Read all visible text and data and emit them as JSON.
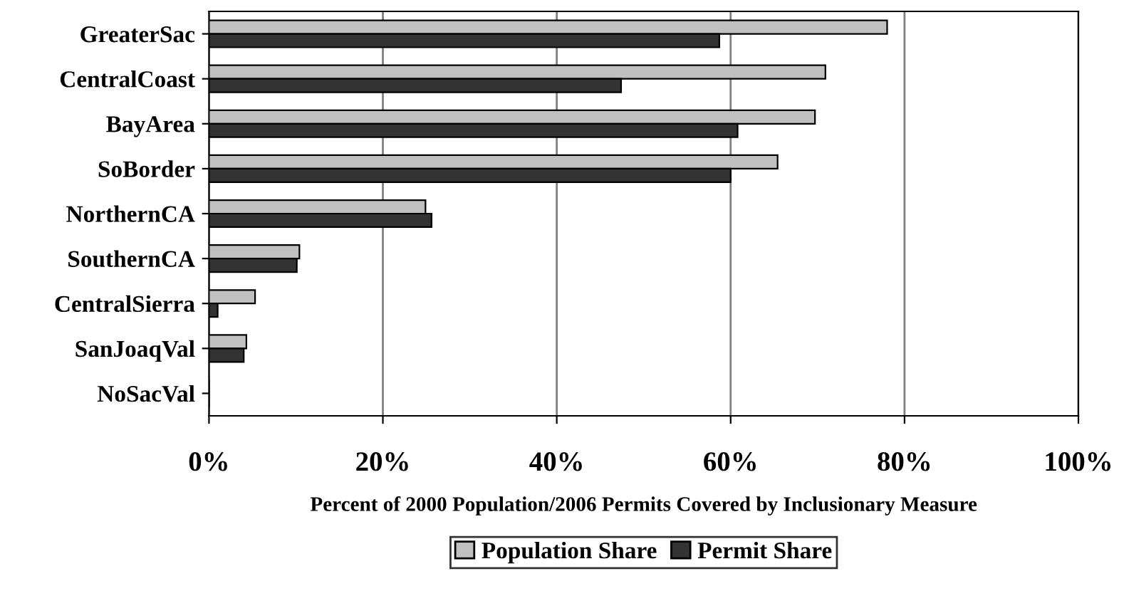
{
  "chart_data": {
    "type": "bar",
    "orientation": "horizontal",
    "xlabel": "Percent of 2000 Population/2006 Permits Covered by Inclusionary Measure",
    "categories": [
      "GreaterSac",
      "CentralCoast",
      "BayArea",
      "SoBorder",
      "NorthernCA",
      "SouthernCA",
      "CentralSierra",
      "SanJoaqVal",
      "NoSacVal"
    ],
    "series": [
      {
        "name": "Population Share",
        "color": "#c0c0c0",
        "values": [
          78,
          70.9,
          69.7,
          65.4,
          24.9,
          10.4,
          5.3,
          4.3,
          0
        ]
      },
      {
        "name": "Permit Share",
        "color": "#333333",
        "values": [
          58.7,
          47.4,
          60.8,
          60.0,
          25.6,
          10.1,
          1.0,
          4.0,
          0
        ]
      }
    ],
    "xlim": [
      0,
      100
    ],
    "xticks": [
      {
        "value": 0,
        "label": "0%"
      },
      {
        "value": 20,
        "label": "20%"
      },
      {
        "value": 40,
        "label": "40%"
      },
      {
        "value": 60,
        "label": "60%"
      },
      {
        "value": 80,
        "label": "80%"
      },
      {
        "value": 100,
        "label": "100%"
      }
    ],
    "grid": "x",
    "legend": "bottom"
  }
}
